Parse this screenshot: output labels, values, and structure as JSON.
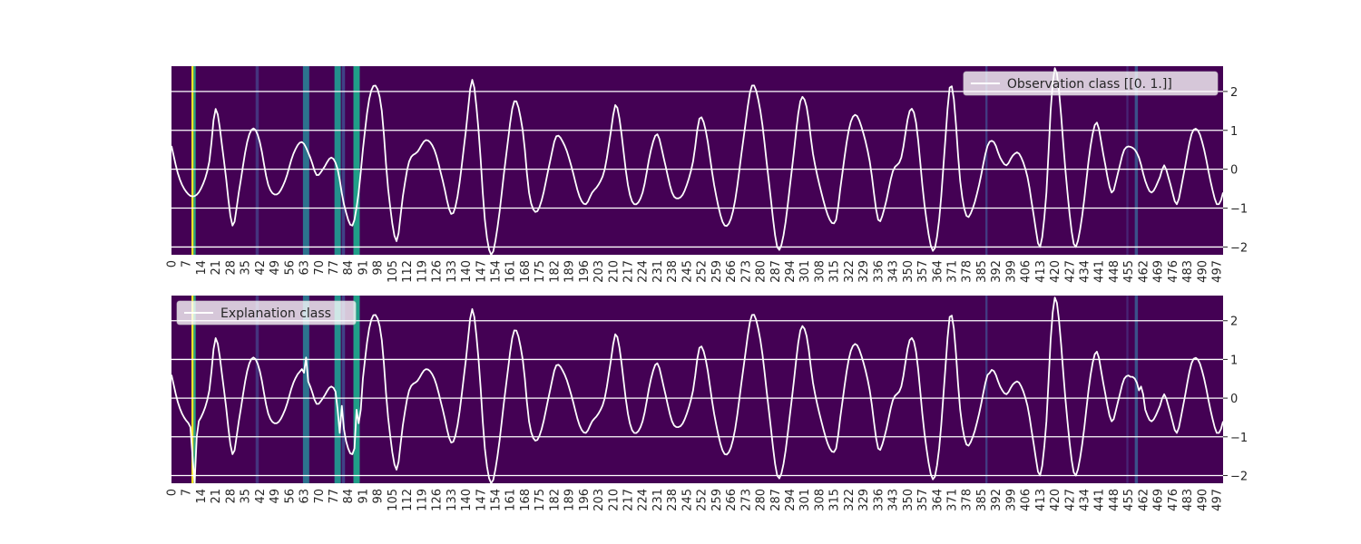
{
  "chart_data": [
    {
      "type": "line",
      "legend": "Observation class [[0. 1.]]",
      "legend_position": "upper-right",
      "heatmap_background": "viridis",
      "x_range": [
        0,
        500
      ],
      "ylim": [
        -2.2,
        2.65
      ],
      "yticks": [
        -2,
        -1,
        0,
        1,
        2
      ],
      "grid": true,
      "series": [
        {
          "name": "Observation class [[0. 1.]]",
          "color": "#ffffff",
          "knots": [
            [
              0,
              0.6
            ],
            [
              3,
              -0.1
            ],
            [
              6,
              -0.5
            ],
            [
              10,
              -0.7
            ],
            [
              14,
              -0.5
            ],
            [
              18,
              0.2
            ],
            [
              21,
              1.55
            ],
            [
              25,
              0.2
            ],
            [
              29,
              -1.45
            ],
            [
              32,
              -0.6
            ],
            [
              36,
              0.7
            ],
            [
              39,
              1.05
            ],
            [
              42,
              0.7
            ],
            [
              46,
              -0.4
            ],
            [
              50,
              -0.65
            ],
            [
              54,
              -0.3
            ],
            [
              58,
              0.4
            ],
            [
              62,
              0.7
            ],
            [
              66,
              0.3
            ],
            [
              69,
              -0.15
            ],
            [
              72,
              0.0
            ],
            [
              76,
              0.3
            ],
            [
              79,
              0.0
            ],
            [
              82,
              -0.9
            ],
            [
              86,
              -1.45
            ],
            [
              89,
              -0.6
            ],
            [
              91,
              0.5
            ],
            [
              94,
              1.8
            ],
            [
              97,
              2.15
            ],
            [
              100,
              1.5
            ],
            [
              103,
              -0.5
            ],
            [
              107,
              -1.85
            ],
            [
              110,
              -0.7
            ],
            [
              113,
              0.2
            ],
            [
              117,
              0.45
            ],
            [
              121,
              0.75
            ],
            [
              125,
              0.5
            ],
            [
              129,
              -0.3
            ],
            [
              133,
              -1.15
            ],
            [
              136,
              -0.7
            ],
            [
              140,
              1.0
            ],
            [
              143,
              2.3
            ],
            [
              146,
              1.0
            ],
            [
              149,
              -1.3
            ],
            [
              152,
              -2.2
            ],
            [
              155,
              -1.5
            ],
            [
              159,
              0.3
            ],
            [
              163,
              1.75
            ],
            [
              167,
              1.0
            ],
            [
              170,
              -0.6
            ],
            [
              173,
              -1.1
            ],
            [
              176,
              -0.8
            ],
            [
              180,
              0.2
            ],
            [
              183,
              0.85
            ],
            [
              187,
              0.6
            ],
            [
              190,
              0.1
            ],
            [
              194,
              -0.7
            ],
            [
              197,
              -0.9
            ],
            [
              200,
              -0.6
            ],
            [
              203,
              -0.4
            ],
            [
              206,
              0.0
            ],
            [
              209,
              1.0
            ],
            [
              211,
              1.65
            ],
            [
              213,
              1.3
            ],
            [
              217,
              -0.4
            ],
            [
              220,
              -0.9
            ],
            [
              224,
              -0.6
            ],
            [
              228,
              0.5
            ],
            [
              231,
              0.9
            ],
            [
              234,
              0.3
            ],
            [
              238,
              -0.6
            ],
            [
              241,
              -0.75
            ],
            [
              244,
              -0.55
            ],
            [
              248,
              0.2
            ],
            [
              251,
              1.3
            ],
            [
              254,
              1.0
            ],
            [
              258,
              -0.4
            ],
            [
              262,
              -1.35
            ],
            [
              265,
              -1.4
            ],
            [
              268,
              -0.8
            ],
            [
              272,
              0.8
            ],
            [
              276,
              2.15
            ],
            [
              280,
              1.5
            ],
            [
              284,
              -0.3
            ],
            [
              288,
              -2.0
            ],
            [
              291,
              -1.7
            ],
            [
              295,
              0.0
            ],
            [
              299,
              1.75
            ],
            [
              302,
              1.6
            ],
            [
              305,
              0.4
            ],
            [
              309,
              -0.6
            ],
            [
              313,
              -1.3
            ],
            [
              316,
              -1.3
            ],
            [
              318,
              -0.5
            ],
            [
              322,
              1.0
            ],
            [
              325,
              1.4
            ],
            [
              328,
              1.1
            ],
            [
              332,
              0.2
            ],
            [
              336,
              -1.3
            ],
            [
              339,
              -1.0
            ],
            [
              343,
              -0.05
            ],
            [
              347,
              0.3
            ],
            [
              351,
              1.5
            ],
            [
              354,
              1.2
            ],
            [
              358,
              -0.9
            ],
            [
              362,
              -2.1
            ],
            [
              365,
              -1.3
            ],
            [
              368,
              0.8
            ],
            [
              370,
              2.1
            ],
            [
              372,
              1.8
            ],
            [
              375,
              -0.3
            ],
            [
              378,
              -1.2
            ],
            [
              381,
              -1.0
            ],
            [
              384,
              -0.4
            ],
            [
              388,
              0.6
            ],
            [
              391,
              0.7
            ],
            [
              394,
              0.3
            ],
            [
              397,
              0.1
            ],
            [
              400,
              0.35
            ],
            [
              403,
              0.4
            ],
            [
              407,
              -0.2
            ],
            [
              410,
              -1.2
            ],
            [
              413,
              -2.0
            ],
            [
              416,
              -0.6
            ],
            [
              418,
              1.5
            ],
            [
              420,
              2.6
            ],
            [
              422,
              2.0
            ],
            [
              425,
              0.0
            ],
            [
              428,
              -1.6
            ],
            [
              430,
              -2.0
            ],
            [
              433,
              -1.2
            ],
            [
              437,
              0.6
            ],
            [
              440,
              1.2
            ],
            [
              443,
              0.4
            ],
            [
              447,
              -0.6
            ],
            [
              450,
              -0.1
            ],
            [
              453,
              0.5
            ],
            [
              457,
              0.55
            ],
            [
              460,
              0.3
            ],
            [
              463,
              -0.3
            ],
            [
              466,
              -0.6
            ],
            [
              470,
              -0.2
            ],
            [
              472,
              0.1
            ],
            [
              475,
              -0.4
            ],
            [
              478,
              -0.9
            ],
            [
              481,
              -0.2
            ],
            [
              485,
              0.9
            ],
            [
              488,
              1.0
            ],
            [
              491,
              0.5
            ],
            [
              494,
              -0.3
            ],
            [
              497,
              -0.9
            ],
            [
              499,
              -0.8
            ],
            [
              500,
              -0.6
            ]
          ]
        }
      ]
    },
    {
      "type": "line",
      "legend": "Explanation class",
      "legend_position": "upper-left",
      "heatmap_background": "viridis",
      "x_range": [
        0,
        500
      ],
      "ylim": [
        -2.2,
        2.65
      ],
      "yticks": [
        -2,
        -1,
        0,
        1,
        2
      ],
      "grid": true,
      "series": [
        {
          "name": "Explanation class",
          "color": "#ffffff",
          "perturbations": [
            [
              9,
              -0.75
            ],
            [
              10,
              -1.5
            ],
            [
              11,
              -2.2
            ],
            [
              12,
              -1.0
            ],
            [
              62,
              0.75
            ],
            [
              64,
              1.05
            ],
            [
              66,
              0.3
            ],
            [
              79,
              -0.3
            ],
            [
              80,
              -0.9
            ],
            [
              81,
              -0.2
            ],
            [
              82,
              -0.8
            ],
            [
              88,
              -0.3
            ],
            [
              89,
              -0.65
            ],
            [
              90,
              -0.3
            ],
            [
              389,
              0.65
            ],
            [
              456,
              0.55
            ],
            [
              459,
              0.4
            ],
            [
              460,
              0.2
            ],
            [
              461,
              0.3
            ],
            [
              462,
              0.1
            ]
          ]
        }
      ]
    }
  ],
  "heatmap": {
    "background": "#440154",
    "bands": [
      {
        "start": 9.5,
        "end": 10.5,
        "value": 1.0
      },
      {
        "start": 10.5,
        "end": 11.5,
        "value": 0.6
      },
      {
        "start": 40,
        "end": 41.5,
        "value": 0.15
      },
      {
        "start": 62.5,
        "end": 65.5,
        "value": 0.38
      },
      {
        "start": 77.5,
        "end": 80.5,
        "value": 0.5
      },
      {
        "start": 81,
        "end": 82.5,
        "value": 0.2
      },
      {
        "start": 86.5,
        "end": 89.5,
        "value": 0.56
      },
      {
        "start": 387,
        "end": 388,
        "value": 0.18
      },
      {
        "start": 454,
        "end": 455,
        "value": 0.1
      },
      {
        "start": 458,
        "end": 459.5,
        "value": 0.25
      }
    ]
  },
  "xticks": [
    0,
    7,
    14,
    21,
    28,
    35,
    42,
    49,
    56,
    63,
    70,
    77,
    84,
    91,
    98,
    105,
    112,
    119,
    126,
    133,
    140,
    147,
    154,
    161,
    168,
    175,
    182,
    189,
    196,
    203,
    210,
    217,
    224,
    231,
    238,
    245,
    252,
    259,
    266,
    273,
    280,
    287,
    294,
    301,
    308,
    315,
    322,
    329,
    336,
    343,
    350,
    357,
    364,
    371,
    378,
    385,
    392,
    399,
    406,
    413,
    420,
    427,
    434,
    441,
    448,
    455,
    462,
    469,
    476,
    483,
    490,
    497
  ]
}
